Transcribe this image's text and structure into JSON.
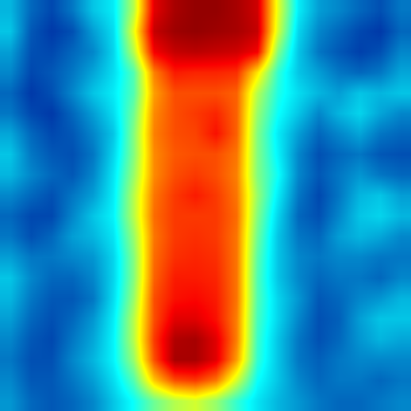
{
  "chart_data": {
    "type": "heatmap",
    "tick_labels": false,
    "zlim": [
      0,
      1
    ],
    "z": [
      [
        0.28,
        0.18,
        0.14,
        0.2,
        0.3,
        0.35,
        0.55,
        0.9,
        0.96,
        0.98,
        0.98,
        0.96,
        0.92,
        0.6,
        0.35,
        0.25,
        0.22,
        0.18,
        0.15,
        0.2
      ],
      [
        0.3,
        0.16,
        0.12,
        0.15,
        0.25,
        0.33,
        0.6,
        0.93,
        0.97,
        0.98,
        0.97,
        0.96,
        0.93,
        0.58,
        0.32,
        0.22,
        0.18,
        0.14,
        0.12,
        0.18
      ],
      [
        0.25,
        0.15,
        0.14,
        0.18,
        0.22,
        0.32,
        0.55,
        0.88,
        0.93,
        0.94,
        0.93,
        0.92,
        0.88,
        0.5,
        0.3,
        0.2,
        0.16,
        0.13,
        0.15,
        0.22
      ],
      [
        0.22,
        0.14,
        0.16,
        0.2,
        0.26,
        0.33,
        0.45,
        0.75,
        0.85,
        0.84,
        0.84,
        0.83,
        0.65,
        0.42,
        0.3,
        0.25,
        0.2,
        0.18,
        0.2,
        0.26
      ],
      [
        0.18,
        0.12,
        0.15,
        0.22,
        0.3,
        0.35,
        0.45,
        0.72,
        0.8,
        0.8,
        0.8,
        0.78,
        0.55,
        0.4,
        0.33,
        0.28,
        0.25,
        0.3,
        0.28,
        0.3
      ],
      [
        0.2,
        0.14,
        0.12,
        0.18,
        0.25,
        0.33,
        0.48,
        0.74,
        0.8,
        0.82,
        0.84,
        0.78,
        0.52,
        0.38,
        0.3,
        0.22,
        0.28,
        0.32,
        0.26,
        0.22
      ],
      [
        0.26,
        0.18,
        0.14,
        0.16,
        0.22,
        0.3,
        0.5,
        0.75,
        0.8,
        0.81,
        0.86,
        0.78,
        0.5,
        0.35,
        0.25,
        0.18,
        0.22,
        0.26,
        0.2,
        0.18
      ],
      [
        0.3,
        0.2,
        0.16,
        0.15,
        0.2,
        0.32,
        0.5,
        0.74,
        0.79,
        0.8,
        0.8,
        0.76,
        0.5,
        0.36,
        0.22,
        0.15,
        0.18,
        0.2,
        0.16,
        0.15
      ],
      [
        0.28,
        0.22,
        0.18,
        0.16,
        0.22,
        0.34,
        0.52,
        0.74,
        0.8,
        0.82,
        0.8,
        0.75,
        0.5,
        0.38,
        0.22,
        0.16,
        0.2,
        0.24,
        0.2,
        0.18
      ],
      [
        0.22,
        0.18,
        0.15,
        0.2,
        0.25,
        0.35,
        0.55,
        0.76,
        0.82,
        0.85,
        0.82,
        0.76,
        0.52,
        0.35,
        0.2,
        0.14,
        0.2,
        0.28,
        0.3,
        0.25
      ],
      [
        0.18,
        0.14,
        0.14,
        0.22,
        0.3,
        0.36,
        0.55,
        0.77,
        0.82,
        0.82,
        0.82,
        0.77,
        0.5,
        0.32,
        0.18,
        0.15,
        0.22,
        0.3,
        0.32,
        0.28
      ],
      [
        0.2,
        0.15,
        0.18,
        0.25,
        0.28,
        0.34,
        0.52,
        0.76,
        0.82,
        0.83,
        0.82,
        0.76,
        0.48,
        0.3,
        0.2,
        0.18,
        0.25,
        0.28,
        0.26,
        0.22
      ],
      [
        0.25,
        0.2,
        0.2,
        0.22,
        0.24,
        0.32,
        0.5,
        0.77,
        0.83,
        0.84,
        0.83,
        0.76,
        0.46,
        0.3,
        0.22,
        0.2,
        0.22,
        0.22,
        0.2,
        0.2
      ],
      [
        0.3,
        0.22,
        0.18,
        0.18,
        0.22,
        0.32,
        0.5,
        0.78,
        0.85,
        0.85,
        0.84,
        0.76,
        0.45,
        0.3,
        0.22,
        0.18,
        0.2,
        0.2,
        0.18,
        0.22
      ],
      [
        0.28,
        0.2,
        0.16,
        0.16,
        0.2,
        0.33,
        0.52,
        0.8,
        0.86,
        0.87,
        0.85,
        0.76,
        0.45,
        0.32,
        0.24,
        0.16,
        0.18,
        0.22,
        0.24,
        0.28
      ],
      [
        0.25,
        0.18,
        0.15,
        0.18,
        0.24,
        0.35,
        0.55,
        0.8,
        0.9,
        0.9,
        0.86,
        0.75,
        0.44,
        0.32,
        0.22,
        0.15,
        0.17,
        0.25,
        0.3,
        0.3
      ],
      [
        0.22,
        0.16,
        0.14,
        0.2,
        0.26,
        0.36,
        0.55,
        0.82,
        0.95,
        0.96,
        0.9,
        0.75,
        0.43,
        0.3,
        0.2,
        0.15,
        0.18,
        0.24,
        0.28,
        0.26
      ],
      [
        0.2,
        0.15,
        0.15,
        0.22,
        0.28,
        0.36,
        0.52,
        0.8,
        0.96,
        0.96,
        0.9,
        0.72,
        0.42,
        0.3,
        0.2,
        0.17,
        0.2,
        0.22,
        0.22,
        0.22
      ],
      [
        0.22,
        0.16,
        0.16,
        0.2,
        0.25,
        0.33,
        0.45,
        0.68,
        0.8,
        0.82,
        0.76,
        0.58,
        0.38,
        0.3,
        0.22,
        0.18,
        0.2,
        0.2,
        0.18,
        0.2
      ],
      [
        0.24,
        0.18,
        0.16,
        0.18,
        0.22,
        0.3,
        0.38,
        0.48,
        0.55,
        0.58,
        0.52,
        0.42,
        0.34,
        0.28,
        0.24,
        0.2,
        0.18,
        0.18,
        0.2,
        0.22
      ]
    ]
  }
}
